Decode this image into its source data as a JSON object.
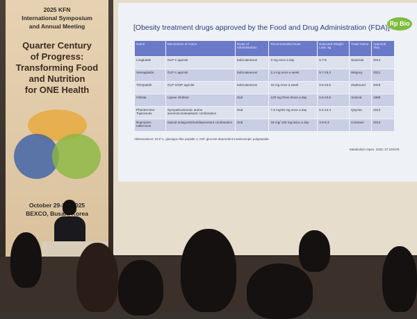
{
  "banner": {
    "subtitle_lines": [
      "2025 KFN",
      "International Symposium",
      "and Annual Meeting"
    ],
    "title_lines": [
      "Quarter Century",
      "of Progress:",
      "Transforming Food",
      "and Nutrition",
      "for ONE Health"
    ],
    "date_lines": [
      "October 29-31, 2025",
      "BEXCO, Busan, Korea"
    ]
  },
  "slide": {
    "title": "[Obesity treatment drugs approved by the Food and Drug Administration (FDA)]",
    "logo": "Rp Bio",
    "headers": [
      "Name",
      "Mechanism of Action",
      "Route of Administration",
      "Recommended Dose",
      "Expected Weight Loss, kg",
      "Trade Name",
      "Approval Year"
    ],
    "rows": [
      [
        "Liraglutide",
        "GLP-1 agonist",
        "Subcutaneous",
        "3 mg once a day",
        "5.7-8",
        "Saxenda",
        "2014"
      ],
      [
        "Semaglutide",
        "GLP-1 agonist",
        "Subcutaneous",
        "2.4 mg once a week",
        "9.7-15.3",
        "Wegovy",
        "2021"
      ],
      [
        "Tirzepatide",
        "GLP-1/GIP agonist",
        "Subcutaneous",
        "15 mg once a week",
        "9.5-23.6",
        "Zepbound",
        "2023"
      ],
      [
        "Orlistat",
        "Lipase inhibitor",
        "Oral",
        "120 mg three times a day",
        "5.8-10.6",
        "Xenical",
        "1999"
      ],
      [
        "Phentermine-Topiramate",
        "Sympathomimetic amine anorectic/antiepileptic combination",
        "Oral",
        "7.5 mg/46 mg once a day",
        "5.2-12.4",
        "Qsymia",
        "2012"
      ],
      [
        "Bupropion-naltrexone",
        "Opioid antagonist/antidepressant combination",
        "Oral",
        "16 mg/ 180 mg twice a day",
        "3.6-9.3",
        "Contrave",
        "2014"
      ]
    ],
    "abbreviations": "Abbreviations: GLP-1, glucagon-like peptide 1; GIP, glucose-dependent insulinotropic polypeptide.",
    "citation": "Metabolism Open. 2025; 27:100375"
  }
}
